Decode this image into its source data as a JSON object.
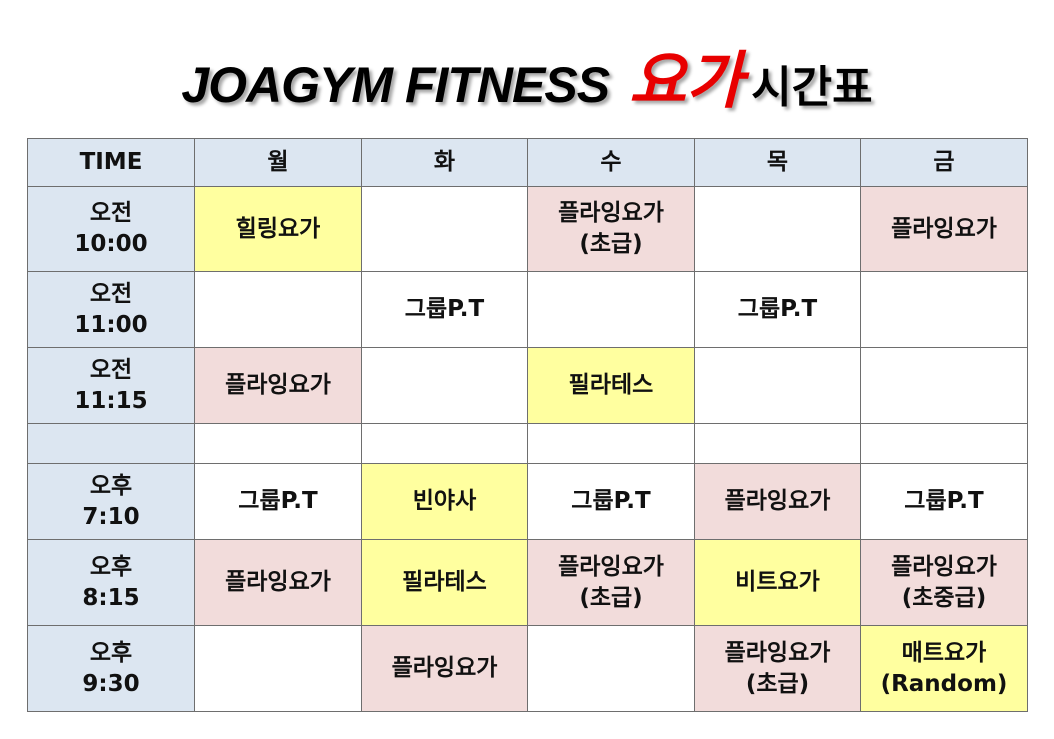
{
  "title": {
    "en": "JOAGYM FITNESS",
    "yoga": "요가",
    "schedule": "시간표"
  },
  "header": [
    "TIME",
    "월",
    "화",
    "수",
    "목",
    "금"
  ],
  "colors": {
    "header": "#dce6f1",
    "yellow": "#ffff9f",
    "pink": "#f2dcdb",
    "white": "#ffffff",
    "title_red": "#e80000"
  },
  "rows": [
    {
      "time": [
        "오전",
        "10:00"
      ],
      "cells": [
        {
          "lines": [
            "힐링요가"
          ],
          "color": "yellow"
        },
        {
          "lines": [],
          "color": "white"
        },
        {
          "lines": [
            "플라잉요가",
            "(초급)"
          ],
          "color": "pink"
        },
        {
          "lines": [],
          "color": "white"
        },
        {
          "lines": [
            "플라잉요가"
          ],
          "color": "pink"
        }
      ]
    },
    {
      "time": [
        "오전",
        "11:00"
      ],
      "cells": [
        {
          "lines": [],
          "color": "white"
        },
        {
          "lines": [
            "그룹P.T"
          ],
          "color": "white"
        },
        {
          "lines": [],
          "color": "white"
        },
        {
          "lines": [
            "그룹P.T"
          ],
          "color": "white"
        },
        {
          "lines": [],
          "color": "white"
        }
      ]
    },
    {
      "time": [
        "오전",
        "11:15"
      ],
      "cells": [
        {
          "lines": [
            "플라잉요가"
          ],
          "color": "pink"
        },
        {
          "lines": [],
          "color": "white"
        },
        {
          "lines": [
            "필라테스"
          ],
          "color": "yellow"
        },
        {
          "lines": [],
          "color": "white"
        },
        {
          "lines": [],
          "color": "white"
        }
      ]
    },
    {
      "time": [],
      "spacer": true,
      "cells": [
        {
          "lines": [],
          "color": "white"
        },
        {
          "lines": [],
          "color": "white"
        },
        {
          "lines": [],
          "color": "white"
        },
        {
          "lines": [],
          "color": "white"
        },
        {
          "lines": [],
          "color": "white"
        }
      ]
    },
    {
      "time": [
        "오후",
        "7:10"
      ],
      "cells": [
        {
          "lines": [
            "그룹P.T"
          ],
          "color": "white"
        },
        {
          "lines": [
            "빈야사"
          ],
          "color": "yellow"
        },
        {
          "lines": [
            "그룹P.T"
          ],
          "color": "white"
        },
        {
          "lines": [
            "플라잉요가"
          ],
          "color": "pink"
        },
        {
          "lines": [
            "그룹P.T"
          ],
          "color": "white"
        }
      ]
    },
    {
      "time": [
        "오후",
        "8:15"
      ],
      "cells": [
        {
          "lines": [
            "플라잉요가"
          ],
          "color": "pink"
        },
        {
          "lines": [
            "필라테스"
          ],
          "color": "yellow"
        },
        {
          "lines": [
            "플라잉요가",
            "(초급)"
          ],
          "color": "pink"
        },
        {
          "lines": [
            "비트요가"
          ],
          "color": "yellow"
        },
        {
          "lines": [
            "플라잉요가",
            "(초중급)"
          ],
          "color": "pink"
        }
      ]
    },
    {
      "time": [
        "오후",
        "9:30"
      ],
      "cells": [
        {
          "lines": [],
          "color": "white"
        },
        {
          "lines": [
            "플라잉요가"
          ],
          "color": "pink"
        },
        {
          "lines": [],
          "color": "white"
        },
        {
          "lines": [
            "플라잉요가",
            "(초급)"
          ],
          "color": "pink"
        },
        {
          "lines": [
            "매트요가",
            "(Random)"
          ],
          "color": "yellow"
        }
      ]
    }
  ]
}
